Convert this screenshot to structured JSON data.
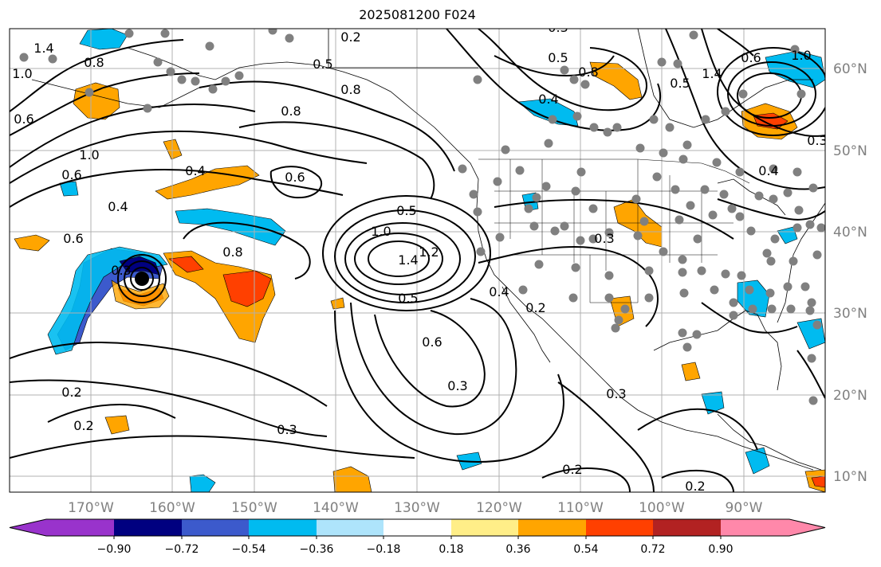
{
  "title": "2025081200 F024",
  "map": {
    "lon_labels": [
      "170°W",
      "160°W",
      "150°W",
      "140°W",
      "130°W",
      "120°W",
      "110°W",
      "100°W",
      "90°W"
    ],
    "lat_labels": [
      "60°N",
      "50°N",
      "40°N",
      "30°N",
      "20°N",
      "10°N"
    ],
    "contour_labels": [
      "1.4",
      "1.0",
      "0.8",
      "0.6",
      "0.2",
      "0.2",
      "0.5",
      "0.8",
      "0.8",
      "1.0",
      "0.6",
      "0.4",
      "0.4",
      "0.6",
      "0.5",
      "1.4",
      "1.0",
      "0.6",
      "0.3",
      "0.8",
      "1.2",
      "0.5",
      "0.6",
      "0.3",
      "0.4",
      "0.2",
      "0.2",
      "0.3",
      "0.3",
      "0.2",
      "0.2",
      "0.5",
      "0.8",
      "0.4",
      "0.3",
      "0.5",
      "1.4",
      "0.6",
      "1.0",
      "0.3",
      "0.3",
      "0.4"
    ],
    "colors": {
      "purple": "#9933cc",
      "navy": "#000080",
      "blue": "#3c5acc",
      "deepskyblue": "#00bbf0",
      "lightblue": "#aee4fb",
      "white": "#ffffff",
      "lightyellow": "#ffee88",
      "orange": "#ffa500",
      "orangered": "#ff4000",
      "firebrick": "#b22222",
      "pink": "#ff88aa",
      "station_dot": "#808080"
    }
  },
  "colorbar": {
    "labels": [
      "−0.90",
      "−0.72",
      "−0.54",
      "−0.36",
      "−0.18",
      "0.18",
      "0.36",
      "0.54",
      "0.72",
      "0.90"
    ],
    "colors": [
      "#9933cc",
      "#000080",
      "#3c5acc",
      "#00bbf0",
      "#aee4fb",
      "#ffffff",
      "#ffee88",
      "#ffa500",
      "#ff4000",
      "#b22222",
      "#ff88aa"
    ]
  }
}
